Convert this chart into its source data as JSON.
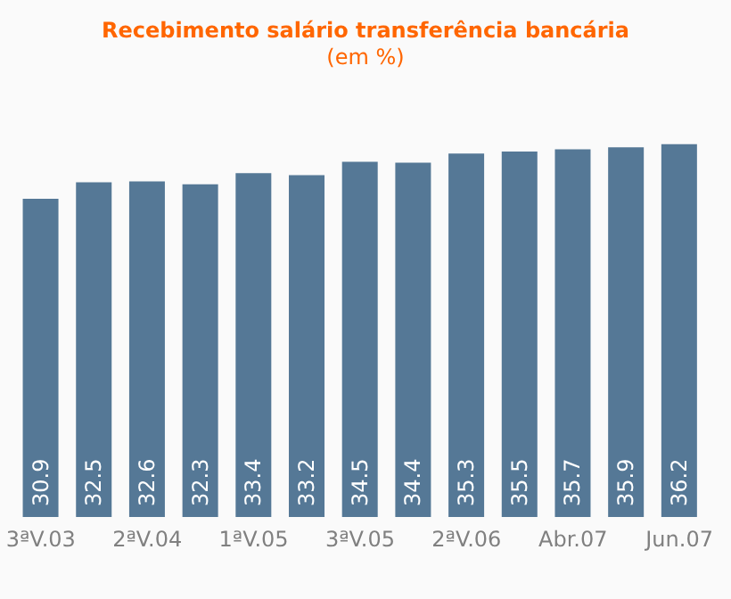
{
  "chart_data": {
    "type": "bar",
    "title": "Recebimento salário transferência bancária",
    "subtitle": "(em %)",
    "categories": [
      "3ªV.03",
      null,
      "2ªV.04",
      null,
      "1ªV.05",
      null,
      "3ªV.05",
      null,
      "2ªV.06",
      null,
      "Abr.07",
      null,
      "Jun.07"
    ],
    "values": [
      30.9,
      32.5,
      32.6,
      32.3,
      33.4,
      33.2,
      34.5,
      34.4,
      35.3,
      35.5,
      35.7,
      35.9,
      36.2
    ],
    "color": "#557896",
    "data_labels": true,
    "grid": false,
    "legend": false
  }
}
